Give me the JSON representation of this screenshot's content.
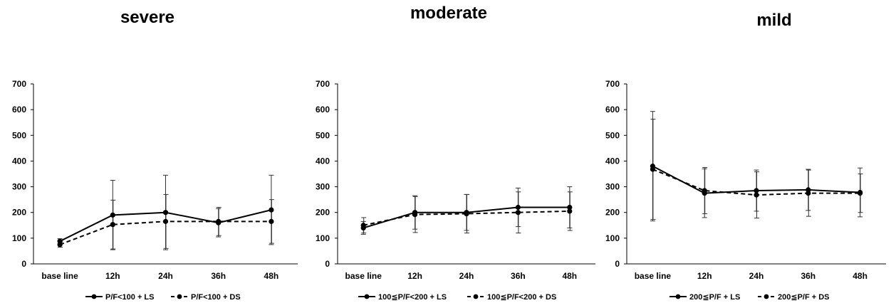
{
  "chart_data": [
    {
      "type": "line",
      "title": "severe",
      "categories": [
        "base line",
        "12h",
        "24h",
        "36h",
        "48h"
      ],
      "ylim": [
        0,
        700
      ],
      "yticks": [
        0,
        100,
        200,
        300,
        400,
        500,
        600,
        700
      ],
      "grid": false,
      "legend_position": "bottom",
      "series": [
        {
          "name": "P/F<100 + LS",
          "style": "solid",
          "color": "#000000",
          "values": [
            88,
            190,
            200,
            160,
            210
          ],
          "error": [
            10,
            135,
            145,
            55,
            135
          ]
        },
        {
          "name": "P/F<100 + DS",
          "style": "dashed",
          "color": "#000000",
          "values": [
            75,
            153,
            165,
            165,
            165
          ],
          "error": [
            10,
            95,
            105,
            55,
            85
          ]
        }
      ]
    },
    {
      "type": "line",
      "title": "moderate",
      "categories": [
        "base line",
        "12h",
        "24h",
        "36h",
        "48h"
      ],
      "ylim": [
        0,
        700
      ],
      "yticks": [
        0,
        100,
        200,
        300,
        400,
        500,
        600,
        700
      ],
      "grid": false,
      "legend_position": "bottom",
      "series": [
        {
          "name": "100≦P/F<200 + LS",
          "style": "solid",
          "color": "#000000",
          "values": [
            140,
            200,
            200,
            220,
            220
          ],
          "error": [
            25,
            65,
            70,
            75,
            80
          ]
        },
        {
          "name": "100≦P/F<200 + DS",
          "style": "dashed",
          "color": "#000000",
          "values": [
            150,
            192,
            195,
            200,
            205
          ],
          "error": [
            30,
            70,
            75,
            80,
            75
          ]
        }
      ]
    },
    {
      "type": "line",
      "title": "mild",
      "categories": [
        "base line",
        "12h",
        "24h",
        "36h",
        "48h"
      ],
      "ylim": [
        0,
        700
      ],
      "yticks": [
        0,
        100,
        200,
        300,
        400,
        500,
        600,
        700
      ],
      "grid": false,
      "legend_position": "bottom",
      "series": [
        {
          "name": "200≦P/F + LS",
          "style": "solid",
          "color": "#000000",
          "values": [
            380,
            275,
            285,
            288,
            278
          ],
          "error": [
            213,
            95,
            80,
            80,
            95
          ]
        },
        {
          "name": "200≦P/F + DS",
          "style": "dashed",
          "color": "#000000",
          "values": [
            368,
            285,
            268,
            275,
            275
          ],
          "error": [
            195,
            90,
            90,
            90,
            75
          ]
        }
      ]
    }
  ]
}
